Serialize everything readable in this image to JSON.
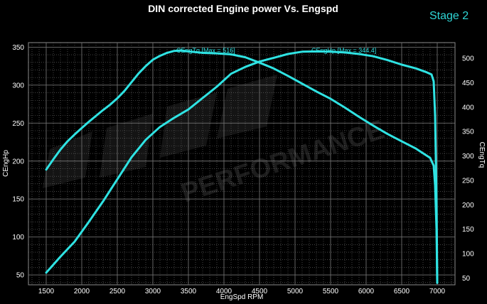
{
  "chart_data": {
    "type": "line",
    "title": "DIN corrected Engine power Vs. Engspd",
    "badge": "Stage 2",
    "xlabel": "EngSpd RPM",
    "ylabel_left": "CEngHp",
    "ylabel_right": "CEngTq",
    "xlim": [
      1250,
      7250
    ],
    "ylim_left": [
      37,
      356
    ],
    "ylim_right": [
      36,
      532
    ],
    "x_ticks": [
      1500,
      2000,
      2500,
      3000,
      3500,
      4000,
      4500,
      5000,
      5500,
      6000,
      6500,
      7000
    ],
    "y_left_ticks": [
      50,
      100,
      150,
      200,
      250,
      300,
      350
    ],
    "y_right_ticks": [
      50,
      100,
      150,
      200,
      250,
      300,
      350,
      400,
      450,
      500
    ],
    "grid": true,
    "colors": {
      "series": "#2fe3e3",
      "grid": "#6e6e6e",
      "background": "#000000",
      "text": "#ffffff",
      "badge": "#2fd6d6"
    },
    "series": [
      {
        "name": "CEngTq",
        "label": "CEngTq [Max = 516]",
        "axis": "right",
        "x": [
          1500,
          1600,
          1700,
          1800,
          1900,
          2000,
          2100,
          2200,
          2300,
          2400,
          2500,
          2600,
          2700,
          2800,
          2900,
          3000,
          3100,
          3200,
          3300,
          3400,
          3500,
          3700,
          3900,
          4100,
          4300,
          4500,
          4700,
          4900,
          5100,
          5300,
          5500,
          5700,
          5900,
          6100,
          6300,
          6500,
          6700,
          6900,
          6950,
          6970,
          6990,
          7000
        ],
        "y": [
          272,
          293,
          313,
          330,
          344,
          357,
          370,
          382,
          394,
          405,
          418,
          433,
          451,
          469,
          484,
          497,
          505,
          511,
          515,
          516,
          514,
          511,
          510,
          508,
          502,
          491,
          479,
          464,
          448,
          432,
          417,
          399,
          380,
          362,
          345,
          330,
          315,
          296,
          280,
          240,
          150,
          40
        ]
      },
      {
        "name": "CEngHp",
        "label": "CEngHp [Max = 344.4]",
        "axis": "left",
        "x": [
          1500,
          1700,
          1900,
          2100,
          2300,
          2500,
          2700,
          2900,
          3100,
          3300,
          3500,
          3700,
          3900,
          4100,
          4300,
          4500,
          4700,
          4900,
          5100,
          5300,
          5500,
          5700,
          5900,
          6100,
          6300,
          6500,
          6700,
          6850,
          6920,
          6950,
          6970,
          6990,
          7000
        ],
        "y": [
          53,
          74,
          94,
          120,
          147,
          176,
          205,
          228,
          245,
          257,
          268,
          283,
          298,
          315,
          324,
          331,
          336,
          341,
          344,
          344.4,
          344,
          343,
          341,
          338,
          333,
          327,
          322,
          317,
          314,
          305,
          260,
          150,
          40
        ]
      }
    ]
  }
}
